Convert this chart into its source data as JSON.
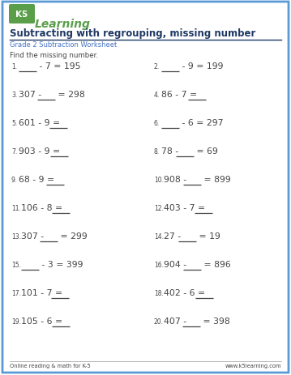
{
  "title": "Subtracting with regrouping, missing number",
  "subtitle": "Grade 2 Subtraction Worksheet",
  "instruction": "Find the missing number.",
  "border_color": "#5b9bd5",
  "title_color": "#1f3864",
  "subtitle_color": "#4472c4",
  "problems": [
    {
      "num": 1,
      "text": "___ - 7 = 195",
      "col": 0
    },
    {
      "num": 2,
      "text": "___ - 9 = 199",
      "col": 1
    },
    {
      "num": 3,
      "text": "307 - ___ = 298",
      "col": 0
    },
    {
      "num": 4,
      "text": "86 - 7 = ___",
      "col": 1
    },
    {
      "num": 5,
      "text": "601 - 9 = ___",
      "col": 0
    },
    {
      "num": 6,
      "text": "___ - 6 = 297",
      "col": 1
    },
    {
      "num": 7,
      "text": "903 - 9 = ___",
      "col": 0
    },
    {
      "num": 8,
      "text": "78 - ___ = 69",
      "col": 1
    },
    {
      "num": 9,
      "text": "68 - 9 = ___",
      "col": 0
    },
    {
      "num": 10,
      "text": "908 - ___ = 899",
      "col": 1
    },
    {
      "num": 11,
      "text": "106 - 8 = ___",
      "col": 0
    },
    {
      "num": 12,
      "text": "403 - 7 = ___",
      "col": 1
    },
    {
      "num": 13,
      "text": "307 - ___ = 299",
      "col": 0
    },
    {
      "num": 14,
      "text": "27 - ___ = 19",
      "col": 1
    },
    {
      "num": 15,
      "text": "___ - 3 = 399",
      "col": 0
    },
    {
      "num": 16,
      "text": "904 - ___ = 896",
      "col": 1
    },
    {
      "num": 17,
      "text": "101 - 7 = ___",
      "col": 0
    },
    {
      "num": 18,
      "text": "402 - 6 = ___",
      "col": 1
    },
    {
      "num": 19,
      "text": "105 - 6 = ___",
      "col": 0
    },
    {
      "num": 20,
      "text": "407 - ___ = 398",
      "col": 1
    }
  ],
  "footer_left": "Online reading & math for K-5",
  "footer_right": "www.k5learning.com",
  "bg_color": "#ffffff",
  "text_color": "#444444",
  "logo_green": "#5a9e4a",
  "logo_blue": "#2e75b6",
  "logo_dark_blue": "#1a5276"
}
